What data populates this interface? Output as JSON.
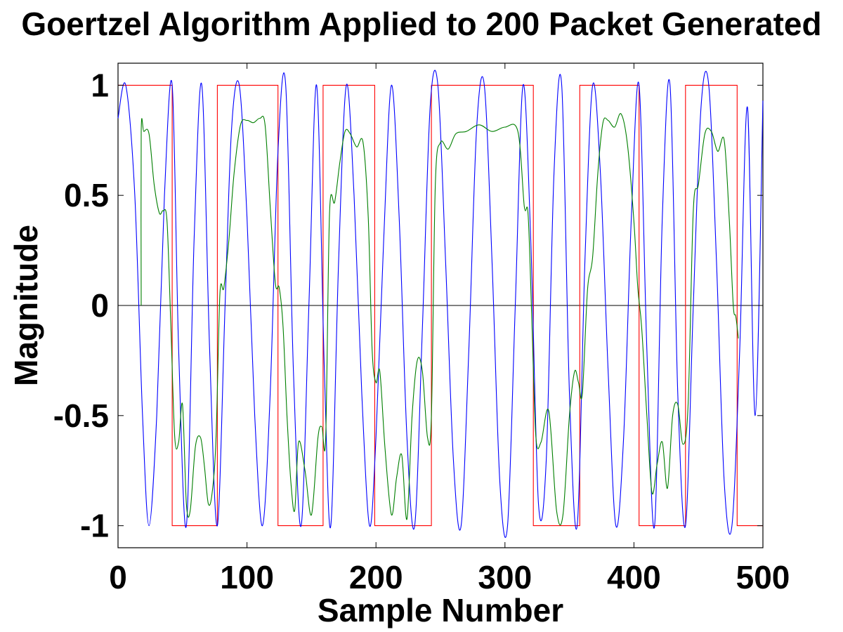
{
  "chart_data": {
    "type": "line",
    "title": "Goertzel Algorithm Applied to 200 Packet Generated",
    "xlabel": "Sample Number",
    "ylabel": "Magnitude",
    "xlim": [
      0,
      500
    ],
    "ylim": [
      -1.1,
      1.1
    ],
    "xticks": [
      0,
      100,
      200,
      300,
      400,
      500
    ],
    "yticks": [
      -1,
      -0.5,
      0,
      0.5,
      1
    ],
    "xtick_labels": [
      "0",
      "100",
      "200",
      "300",
      "400",
      "500"
    ],
    "ytick_labels": [
      "-1",
      "-0.5",
      "0",
      "0.5",
      "1"
    ],
    "grid": false,
    "legend": "none",
    "colors": {
      "blue": "#0000ff",
      "red": "#ff0000",
      "green": "#007f00",
      "zero_line": "#000000"
    },
    "series": [
      {
        "color": "#ff0000",
        "style": "square wave",
        "x": [
          0,
          42,
          42,
          77,
          77,
          124,
          124,
          159,
          159,
          199,
          199,
          243,
          243,
          322,
          322,
          358,
          358,
          404,
          404,
          440,
          440,
          480,
          480,
          500
        ],
        "y": [
          1,
          1,
          -1,
          -1,
          1,
          1,
          -1,
          -1,
          1,
          1,
          -1,
          -1,
          1,
          1,
          -1,
          -1,
          1,
          1,
          -1,
          -1,
          1,
          1,
          -1,
          -1
        ]
      },
      {
        "color": "#0000ff",
        "style": "sinusoid",
        "x": [
          0,
          6,
          13,
          19,
          24,
          30,
          36,
          42,
          47,
          53,
          59,
          65,
          71,
          77,
          83,
          88,
          94,
          100,
          106,
          112,
          118,
          124,
          130,
          136,
          142,
          148,
          154,
          160,
          165,
          171,
          177,
          183,
          189,
          195,
          200,
          206,
          212,
          218,
          224,
          230,
          236,
          242,
          248,
          254,
          260,
          266,
          272,
          278,
          284,
          290,
          296,
          302,
          308,
          314,
          320,
          326,
          332,
          338,
          344,
          350,
          356,
          362,
          368,
          374,
          380,
          386,
          392,
          398,
          404,
          410,
          416,
          422,
          428,
          434,
          440,
          446,
          452,
          458,
          464,
          470,
          476,
          482,
          488,
          494,
          500
        ],
        "y": [
          0.85,
          1.0,
          0.5,
          -0.5,
          -1.0,
          -0.5,
          0.5,
          1.0,
          -0.2,
          -1.0,
          0.3,
          1.0,
          -0.2,
          -1.0,
          0.0,
          0.8,
          1.0,
          0.4,
          -0.5,
          -1.0,
          -0.4,
          0.7,
          1.0,
          -0.3,
          -1.0,
          0.0,
          1.0,
          -0.3,
          -1.0,
          0.2,
          1.0,
          0.5,
          -0.4,
          -1.0,
          -0.6,
          0.3,
          1.0,
          0.4,
          -0.6,
          -1.0,
          -0.1,
          0.9,
          1.0,
          0.2,
          -0.7,
          -1.0,
          -0.2,
          0.8,
          1.0,
          0.2,
          -0.8,
          -1.0,
          0.0,
          1.0,
          0.3,
          -0.9,
          -0.7,
          0.6,
          1.0,
          -0.4,
          -1.0,
          0.2,
          1.0,
          0.6,
          -0.3,
          -1.0,
          -0.6,
          0.4,
          1.0,
          -0.2,
          -1.0,
          0.4,
          1.0,
          -0.4,
          -1.0,
          0.0,
          0.9,
          1.0,
          0.2,
          -0.8,
          -1.0,
          -0.2,
          0.9,
          -0.5,
          0.93
        ]
      },
      {
        "color": "#007f00",
        "style": "filtered output",
        "x": [
          18,
          18,
          20,
          24,
          28,
          32,
          35,
          38,
          41,
          44,
          47,
          50,
          53,
          56,
          60,
          64,
          67,
          70,
          73,
          76,
          79,
          82,
          86,
          90,
          95,
          100,
          105,
          110,
          114,
          118,
          122,
          125,
          128,
          131,
          134,
          137,
          140,
          145,
          150,
          155,
          158,
          161,
          164,
          168,
          172,
          176,
          180,
          185,
          190,
          194,
          197,
          200,
          203,
          207,
          212,
          216,
          220,
          224,
          228,
          232,
          236,
          240,
          243,
          246,
          250,
          256,
          262,
          270,
          280,
          290,
          300,
          310,
          315,
          318,
          321,
          324,
          328,
          334,
          340,
          345,
          350,
          354,
          357,
          360,
          364,
          368,
          372,
          376,
          380,
          385,
          390,
          395,
          400,
          403,
          406,
          410,
          414,
          418,
          422,
          426,
          430,
          434,
          438,
          442,
          446,
          450,
          455,
          460,
          465,
          470,
          474,
          477,
          479,
          481
        ],
        "y": [
          0.0,
          0.79,
          0.79,
          0.78,
          0.55,
          0.42,
          0.43,
          0.38,
          -0.1,
          -0.6,
          -0.62,
          -0.45,
          -0.9,
          -0.93,
          -0.64,
          -0.6,
          -0.73,
          -0.9,
          -0.85,
          -0.6,
          0.05,
          0.08,
          0.3,
          0.6,
          0.82,
          0.84,
          0.83,
          0.85,
          0.82,
          0.45,
          0.1,
          0.08,
          -0.1,
          -0.5,
          -0.8,
          -0.93,
          -0.62,
          -0.75,
          -0.95,
          -0.6,
          -0.55,
          -0.6,
          0.42,
          0.47,
          0.65,
          0.79,
          0.78,
          0.72,
          0.74,
          0.4,
          -0.2,
          -0.35,
          -0.3,
          -0.65,
          -0.95,
          -0.78,
          -0.68,
          -0.97,
          -0.5,
          -0.25,
          -0.3,
          -0.6,
          -0.5,
          0.55,
          0.74,
          0.71,
          0.78,
          0.79,
          0.82,
          0.79,
          0.81,
          0.79,
          0.45,
          0.41,
          -0.1,
          -0.6,
          -0.62,
          -0.48,
          -0.93,
          -0.95,
          -0.5,
          -0.3,
          -0.35,
          -0.4,
          0.07,
          0.22,
          0.6,
          0.83,
          0.84,
          0.81,
          0.87,
          0.73,
          0.38,
          0.08,
          -0.1,
          -0.5,
          -0.85,
          -0.72,
          -0.62,
          -0.83,
          -0.5,
          -0.45,
          -0.63,
          -0.45,
          0.43,
          0.55,
          0.78,
          0.79,
          0.7,
          0.75,
          0.38,
          0.0,
          -0.05,
          -0.15
        ]
      }
    ]
  }
}
